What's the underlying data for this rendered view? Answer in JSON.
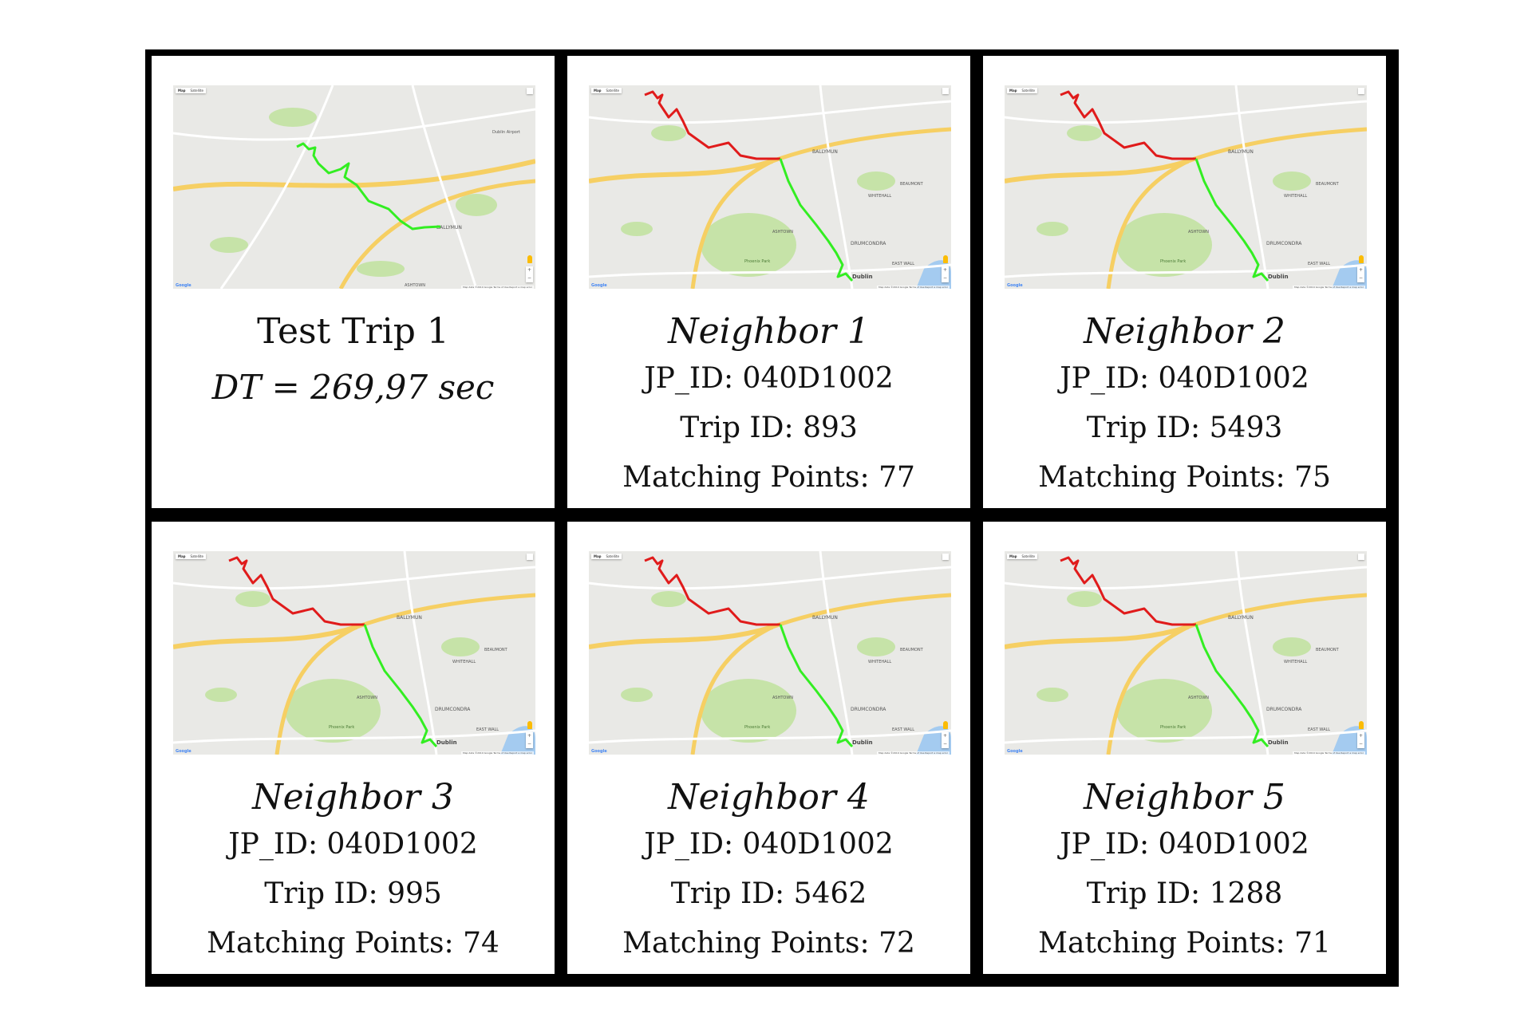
{
  "map": {
    "map_button": "Map",
    "satellite_button": "Satellite",
    "zoom_in": "+",
    "zoom_out": "−",
    "logo": "Google",
    "attribution": "Map data ©2019 Google  Terms of Use  Report a map error",
    "place_labels": [
      "BALLYMUN",
      "WHITEHALL",
      "BEAUMONT",
      "ASHTOWN",
      "DRUMCONDRA",
      "Dublin",
      "EAST WALL",
      "Phoenix Park",
      "Dublin Airport"
    ],
    "colors": {
      "test_route": "#33ee22",
      "neighbor_head": "#e01b1b",
      "neighbor_tail": "#33ee22",
      "park": "#c6e3a8",
      "water": "#a4cbf0",
      "motorway": "#f6cf63"
    }
  },
  "test_trip": {
    "title": "Test Trip 1",
    "dt": "DT = 269,97 sec"
  },
  "neighbors": [
    {
      "title": "Neighbor 1",
      "jp_id": "JP_ID: 040D1002",
      "trip_id": "Trip ID: 893",
      "matching": "Matching Points: 77"
    },
    {
      "title": "Neighbor 2",
      "jp_id": "JP_ID: 040D1002",
      "trip_id": "Trip ID: 5493",
      "matching": "Matching Points: 75"
    },
    {
      "title": "Neighbor 3",
      "jp_id": "JP_ID: 040D1002",
      "trip_id": "Trip ID: 995",
      "matching": "Matching Points: 74"
    },
    {
      "title": "Neighbor 4",
      "jp_id": "JP_ID: 040D1002",
      "trip_id": "Trip ID: 5462",
      "matching": "Matching Points: 72"
    },
    {
      "title": "Neighbor 5",
      "jp_id": "JP_ID: 040D1002",
      "trip_id": "Trip ID: 1288",
      "matching": "Matching Points: 71"
    }
  ]
}
